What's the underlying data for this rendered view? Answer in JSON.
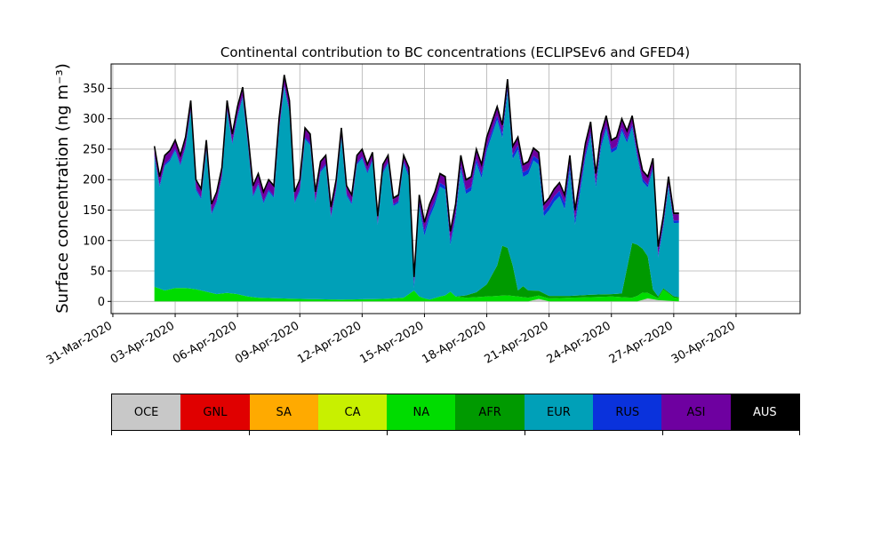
{
  "chart_data": {
    "type": "area",
    "title": "Continental contribution to BC concentrations (ECLIPSEv6 and GFED4)",
    "ylabel": "Surface concentration (ng m⁻³)",
    "xlabel": "",
    "ylim": [
      -20,
      390
    ],
    "yticks": [
      0,
      50,
      100,
      150,
      200,
      250,
      300,
      350
    ],
    "xlim": [
      "2020-03-30T22:00",
      "2020-05-03T02:00"
    ],
    "xticks": [
      "2020-03-31",
      "2020-04-03",
      "2020-04-06",
      "2020-04-09",
      "2020-04-12",
      "2020-04-15",
      "2020-04-18",
      "2020-04-21",
      "2020-04-24",
      "2020-04-27",
      "2020-04-30"
    ],
    "xtick_labels": [
      "31-Mar-2020",
      "03-Apr-2020",
      "06-Apr-2020",
      "09-Apr-2020",
      "12-Apr-2020",
      "15-Apr-2020",
      "18-Apr-2020",
      "21-Apr-2020",
      "24-Apr-2020",
      "27-Apr-2020",
      "30-Apr-2020"
    ],
    "grid": true,
    "legend": "colorbar below plot",
    "total": [
      [
        "2020-04-02T00:00",
        255
      ],
      [
        "2020-04-02T06:00",
        205
      ],
      [
        "2020-04-02T12:00",
        240
      ],
      [
        "2020-04-02T18:00",
        248
      ],
      [
        "2020-04-03T00:00",
        265
      ],
      [
        "2020-04-03T06:00",
        240
      ],
      [
        "2020-04-03T12:00",
        270
      ],
      [
        "2020-04-03T18:00",
        330
      ],
      [
        "2020-04-04T00:00",
        200
      ],
      [
        "2020-04-04T06:00",
        185
      ],
      [
        "2020-04-04T12:00",
        265
      ],
      [
        "2020-04-04T18:00",
        160
      ],
      [
        "2020-04-05T00:00",
        180
      ],
      [
        "2020-04-05T06:00",
        220
      ],
      [
        "2020-04-05T12:00",
        330
      ],
      [
        "2020-04-05T18:00",
        275
      ],
      [
        "2020-04-06T00:00",
        320
      ],
      [
        "2020-04-06T06:00",
        352
      ],
      [
        "2020-04-06T12:00",
        275
      ],
      [
        "2020-04-06T18:00",
        190
      ],
      [
        "2020-04-07T00:00",
        210
      ],
      [
        "2020-04-07T06:00",
        180
      ],
      [
        "2020-04-07T12:00",
        200
      ],
      [
        "2020-04-07T18:00",
        190
      ],
      [
        "2020-04-08T00:00",
        300
      ],
      [
        "2020-04-08T06:00",
        372
      ],
      [
        "2020-04-08T12:00",
        330
      ],
      [
        "2020-04-08T18:00",
        180
      ],
      [
        "2020-04-09T00:00",
        200
      ],
      [
        "2020-04-09T06:00",
        285
      ],
      [
        "2020-04-09T12:00",
        275
      ],
      [
        "2020-04-09T18:00",
        180
      ],
      [
        "2020-04-10T00:00",
        230
      ],
      [
        "2020-04-10T06:00",
        240
      ],
      [
        "2020-04-10T12:00",
        155
      ],
      [
        "2020-04-10T18:00",
        200
      ],
      [
        "2020-04-11T00:00",
        285
      ],
      [
        "2020-04-11T06:00",
        190
      ],
      [
        "2020-04-11T12:00",
        175
      ],
      [
        "2020-04-11T18:00",
        240
      ],
      [
        "2020-04-12T00:00",
        250
      ],
      [
        "2020-04-12T06:00",
        225
      ],
      [
        "2020-04-12T12:00",
        245
      ],
      [
        "2020-04-12T18:00",
        140
      ],
      [
        "2020-04-13T00:00",
        225
      ],
      [
        "2020-04-13T06:00",
        240
      ],
      [
        "2020-04-13T12:00",
        170
      ],
      [
        "2020-04-13T18:00",
        175
      ],
      [
        "2020-04-14T00:00",
        240
      ],
      [
        "2020-04-14T06:00",
        220
      ],
      [
        "2020-04-14T12:00",
        40
      ],
      [
        "2020-04-14T18:00",
        175
      ],
      [
        "2020-04-15T00:00",
        130
      ],
      [
        "2020-04-15T06:00",
        160
      ],
      [
        "2020-04-15T12:00",
        180
      ],
      [
        "2020-04-15T18:00",
        210
      ],
      [
        "2020-04-16T00:00",
        205
      ],
      [
        "2020-04-16T06:00",
        115
      ],
      [
        "2020-04-16T12:00",
        160
      ],
      [
        "2020-04-16T18:00",
        240
      ],
      [
        "2020-04-17T00:00",
        200
      ],
      [
        "2020-04-17T06:00",
        205
      ],
      [
        "2020-04-17T12:00",
        250
      ],
      [
        "2020-04-17T18:00",
        225
      ],
      [
        "2020-04-18T00:00",
        270
      ],
      [
        "2020-04-18T06:00",
        295
      ],
      [
        "2020-04-18T12:00",
        320
      ],
      [
        "2020-04-18T18:00",
        290
      ],
      [
        "2020-04-19T00:00",
        365
      ],
      [
        "2020-04-19T06:00",
        255
      ],
      [
        "2020-04-19T12:00",
        270
      ],
      [
        "2020-04-19T18:00",
        225
      ],
      [
        "2020-04-20T00:00",
        230
      ],
      [
        "2020-04-20T06:00",
        252
      ],
      [
        "2020-04-20T12:00",
        245
      ],
      [
        "2020-04-20T18:00",
        160
      ],
      [
        "2020-04-21T00:00",
        170
      ],
      [
        "2020-04-21T06:00",
        185
      ],
      [
        "2020-04-21T12:00",
        195
      ],
      [
        "2020-04-21T18:00",
        175
      ],
      [
        "2020-04-22T00:00",
        240
      ],
      [
        "2020-04-22T06:00",
        150
      ],
      [
        "2020-04-22T12:00",
        205
      ],
      [
        "2020-04-22T18:00",
        260
      ],
      [
        "2020-04-23T00:00",
        295
      ],
      [
        "2020-04-23T06:00",
        210
      ],
      [
        "2020-04-23T12:00",
        275
      ],
      [
        "2020-04-23T18:00",
        305
      ],
      [
        "2020-04-24T00:00",
        265
      ],
      [
        "2020-04-24T06:00",
        270
      ],
      [
        "2020-04-24T12:00",
        300
      ],
      [
        "2020-04-24T18:00",
        280
      ],
      [
        "2020-04-25T00:00",
        305
      ],
      [
        "2020-04-25T06:00",
        255
      ],
      [
        "2020-04-25T12:00",
        215
      ],
      [
        "2020-04-25T18:00",
        205
      ],
      [
        "2020-04-26T00:00",
        235
      ],
      [
        "2020-04-26T06:00",
        90
      ],
      [
        "2020-04-26T12:00",
        140
      ],
      [
        "2020-04-26T18:00",
        205
      ],
      [
        "2020-04-27T00:00",
        145
      ],
      [
        "2020-04-27T06:00",
        145
      ]
    ],
    "series": [
      {
        "name": "OCE",
        "color": "#c8c8c8",
        "values": [
          [
            "2020-04-02T00:00",
            0
          ],
          [
            "2020-04-20T00:00",
            0
          ],
          [
            "2020-04-20T12:00",
            4
          ],
          [
            "2020-04-21T00:00",
            0
          ],
          [
            "2020-04-25T06:00",
            0
          ],
          [
            "2020-04-25T18:00",
            5
          ],
          [
            "2020-04-26T06:00",
            2
          ],
          [
            "2020-04-27T06:00",
            0
          ]
        ]
      },
      {
        "name": "GNL",
        "color": "#e00000",
        "values": [
          [
            "2020-04-02T00:00",
            0
          ],
          [
            "2020-04-27T06:00",
            0
          ]
        ]
      },
      {
        "name": "SA",
        "color": "#ffaa00",
        "values": [
          [
            "2020-04-02T00:00",
            0
          ],
          [
            "2020-04-27T06:00",
            0
          ]
        ]
      },
      {
        "name": "CA",
        "color": "#c8f000",
        "values": [
          [
            "2020-04-02T00:00",
            0
          ],
          [
            "2020-04-27T06:00",
            0
          ]
        ]
      },
      {
        "name": "NA",
        "color": "#00dc00",
        "values": [
          [
            "2020-04-02T00:00",
            24
          ],
          [
            "2020-04-02T12:00",
            18
          ],
          [
            "2020-04-03T00:00",
            22
          ],
          [
            "2020-04-03T12:00",
            22
          ],
          [
            "2020-04-04T00:00",
            20
          ],
          [
            "2020-04-04T12:00",
            16
          ],
          [
            "2020-04-05T00:00",
            12
          ],
          [
            "2020-04-05T12:00",
            14
          ],
          [
            "2020-04-06T00:00",
            12
          ],
          [
            "2020-04-06T12:00",
            8
          ],
          [
            "2020-04-07T00:00",
            6
          ],
          [
            "2020-04-08T00:00",
            5
          ],
          [
            "2020-04-09T00:00",
            4
          ],
          [
            "2020-04-11T00:00",
            3
          ],
          [
            "2020-04-13T00:00",
            4
          ],
          [
            "2020-04-14T00:00",
            6
          ],
          [
            "2020-04-14T12:00",
            18
          ],
          [
            "2020-04-14T18:00",
            8
          ],
          [
            "2020-04-15T00:00",
            5
          ],
          [
            "2020-04-15T06:00",
            3
          ],
          [
            "2020-04-15T18:00",
            8
          ],
          [
            "2020-04-16T00:00",
            10
          ],
          [
            "2020-04-16T06:00",
            16
          ],
          [
            "2020-04-16T12:00",
            8
          ],
          [
            "2020-04-17T00:00",
            6
          ],
          [
            "2020-04-18T00:00",
            8
          ],
          [
            "2020-04-19T00:00",
            10
          ],
          [
            "2020-04-20T00:00",
            6
          ],
          [
            "2020-04-21T00:00",
            5
          ],
          [
            "2020-04-23T00:00",
            7
          ],
          [
            "2020-04-24T00:00",
            8
          ],
          [
            "2020-04-25T00:00",
            6
          ],
          [
            "2020-04-25T12:00",
            12
          ],
          [
            "2020-04-26T00:00",
            6
          ],
          [
            "2020-04-26T06:00",
            3
          ],
          [
            "2020-04-26T12:00",
            18
          ],
          [
            "2020-04-27T00:00",
            6
          ],
          [
            "2020-04-27T06:00",
            5
          ]
        ]
      },
      {
        "name": "AFR",
        "color": "#009a00",
        "values": [
          [
            "2020-04-02T00:00",
            0
          ],
          [
            "2020-04-16T12:00",
            0
          ],
          [
            "2020-04-17T00:00",
            4
          ],
          [
            "2020-04-17T12:00",
            8
          ],
          [
            "2020-04-18T00:00",
            20
          ],
          [
            "2020-04-18T12:00",
            50
          ],
          [
            "2020-04-18T18:00",
            82
          ],
          [
            "2020-04-19T00:00",
            78
          ],
          [
            "2020-04-19T06:00",
            50
          ],
          [
            "2020-04-19T12:00",
            10
          ],
          [
            "2020-04-19T18:00",
            18
          ],
          [
            "2020-04-20T00:00",
            12
          ],
          [
            "2020-04-20T12:00",
            8
          ],
          [
            "2020-04-21T00:00",
            4
          ],
          [
            "2020-04-22T00:00",
            3
          ],
          [
            "2020-04-23T00:00",
            4
          ],
          [
            "2020-04-24T00:00",
            4
          ],
          [
            "2020-04-24T12:00",
            6
          ],
          [
            "2020-04-25T00:00",
            90
          ],
          [
            "2020-04-25T06:00",
            84
          ],
          [
            "2020-04-25T18:00",
            60
          ],
          [
            "2020-04-26T00:00",
            10
          ],
          [
            "2020-04-26T06:00",
            3
          ],
          [
            "2020-04-26T12:00",
            2
          ],
          [
            "2020-04-27T06:00",
            2
          ]
        ]
      },
      {
        "name": "EUR",
        "color": "#00a0b8",
        "derived": "total minus stacked others"
      },
      {
        "name": "RUS",
        "color": "#0a32dc",
        "values": [
          [
            "2020-04-02T00:00",
            3
          ],
          [
            "2020-04-14T00:00",
            3
          ],
          [
            "2020-04-14T12:00",
            6
          ],
          [
            "2020-04-15T00:00",
            8
          ],
          [
            "2020-04-16T00:00",
            6
          ],
          [
            "2020-04-21T00:00",
            8
          ],
          [
            "2020-04-22T00:00",
            10
          ],
          [
            "2020-04-23T00:00",
            6
          ],
          [
            "2020-04-27T06:00",
            4
          ]
        ]
      },
      {
        "name": "ASI",
        "color": "#6e00a0",
        "values": [
          [
            "2020-04-02T00:00",
            12
          ],
          [
            "2020-04-06T00:00",
            12
          ],
          [
            "2020-04-08T00:00",
            15
          ],
          [
            "2020-04-12T00:00",
            10
          ],
          [
            "2020-04-14T00:00",
            8
          ],
          [
            "2020-04-15T00:00",
            12
          ],
          [
            "2020-04-17T00:00",
            15
          ],
          [
            "2020-04-19T00:00",
            12
          ],
          [
            "2020-04-21T00:00",
            10
          ],
          [
            "2020-04-23T00:00",
            15
          ],
          [
            "2020-04-25T00:00",
            12
          ],
          [
            "2020-04-27T06:00",
            10
          ]
        ]
      },
      {
        "name": "AUS",
        "color": "#000000",
        "values": [
          [
            "2020-04-02T00:00",
            2
          ],
          [
            "2020-04-27T06:00",
            2
          ]
        ]
      }
    ]
  }
}
